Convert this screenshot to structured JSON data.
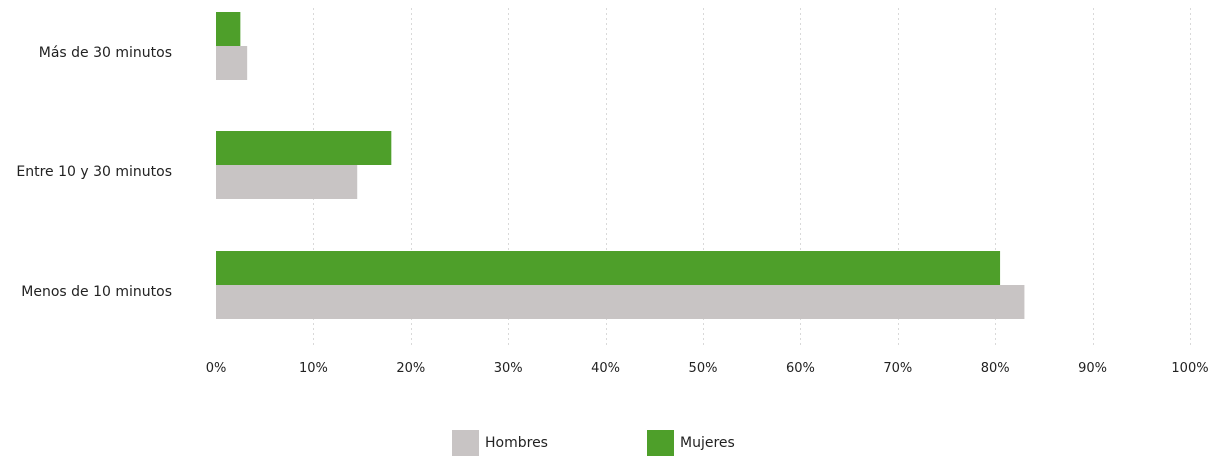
{
  "chart_data": {
    "type": "bar",
    "orientation": "horizontal",
    "categories": [
      "Más de 30 minutos",
      "Entre 10 y 30 minutos",
      "Menos de 10 minutos"
    ],
    "series": [
      {
        "name": "Mujeres",
        "color": "#4e9f2a",
        "values": [
          2.5,
          18,
          80.5
        ]
      },
      {
        "name": "Hombres",
        "color": "#c8c4c4",
        "values": [
          3.2,
          14.5,
          83
        ]
      }
    ],
    "xlim": [
      0,
      100
    ],
    "xticks": [
      0,
      10,
      20,
      30,
      40,
      50,
      60,
      70,
      80,
      90,
      100
    ],
    "xtick_labels": [
      "0%",
      "10%",
      "20%",
      "30%",
      "40%",
      "50%",
      "60%",
      "70%",
      "80%",
      "90%",
      "100%"
    ],
    "grid": true,
    "legend_position": "bottom-center",
    "legend": [
      {
        "name": "Hombres",
        "color": "#c8c4c4"
      },
      {
        "name": "Mujeres",
        "color": "#4e9f2a"
      }
    ]
  }
}
